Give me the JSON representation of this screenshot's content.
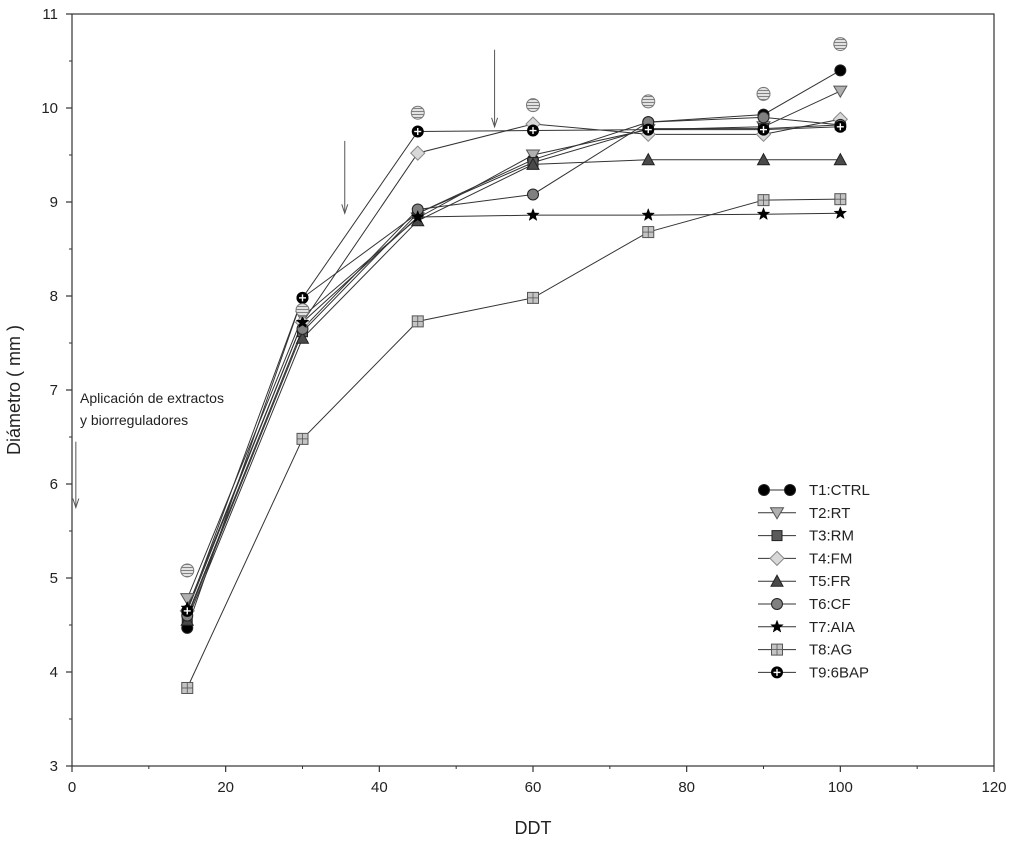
{
  "chart_data": {
    "type": "line",
    "title": "",
    "xlabel": "DDT",
    "ylabel": "Diámetro ( mm )",
    "xlim": [
      0,
      120
    ],
    "ylim": [
      3,
      11
    ],
    "xticks": [
      "0",
      "20",
      "40",
      "60",
      "80",
      "100",
      "120"
    ],
    "yticks": [
      "3",
      "4",
      "5",
      "6",
      "7",
      "8",
      "9",
      "10",
      "11"
    ],
    "grid": false,
    "legend_position": "lower-right",
    "x": [
      15,
      30,
      45,
      60,
      75,
      90,
      100
    ],
    "series": [
      {
        "name": "T1:CTRL",
        "marker": "circle",
        "fill": "#000000",
        "values": [
          4.47,
          7.98,
          8.88,
          9.45,
          9.85,
          9.93,
          10.4
        ]
      },
      {
        "name": "T2:RT",
        "marker": "triangle-down",
        "fill": "#b0b0b0",
        "values": [
          4.78,
          7.78,
          8.83,
          9.5,
          9.77,
          9.8,
          10.18
        ]
      },
      {
        "name": "T3:RM",
        "marker": "square",
        "fill": "#5a5a5a",
        "values": [
          4.58,
          7.62,
          8.88,
          9.42,
          9.78,
          9.78,
          9.82
        ]
      },
      {
        "name": "T4:FM",
        "marker": "diamond",
        "fill": "#d8d8d8",
        "values": [
          4.65,
          7.72,
          9.52,
          9.83,
          9.72,
          9.72,
          9.88
        ]
      },
      {
        "name": "T5:FR",
        "marker": "triangle-up",
        "fill": "#4a4a4a",
        "values": [
          4.55,
          7.55,
          8.8,
          9.4,
          9.45,
          9.45,
          9.45
        ]
      },
      {
        "name": "T6:CF",
        "marker": "circle",
        "fill": "#808080",
        "values": [
          4.6,
          7.65,
          8.92,
          9.08,
          9.85,
          9.9,
          9.82
        ]
      },
      {
        "name": "T7:AIA",
        "marker": "star",
        "fill": "#000000",
        "values": [
          4.68,
          7.72,
          8.84,
          8.86,
          8.86,
          8.87,
          8.88
        ]
      },
      {
        "name": "T8:AG",
        "marker": "grid-square",
        "fill": "#c4c4c4",
        "values": [
          3.83,
          6.48,
          7.73,
          7.98,
          8.68,
          9.02,
          9.03
        ]
      },
      {
        "name": "T9:6BAP",
        "marker": "plus-circle",
        "fill": "#000000",
        "values": [
          4.65,
          7.98,
          9.75,
          9.76,
          9.77,
          9.77,
          9.8
        ]
      },
      {
        "name": "",
        "marker": "striped-circle",
        "fill": "#cccccc",
        "line": false,
        "values": [
          5.08,
          7.85,
          9.95,
          10.03,
          10.07,
          10.15,
          10.68
        ]
      }
    ],
    "annotations": [
      {
        "text": "Aplicación de extractos",
        "line2": "y biorreguladores"
      }
    ],
    "arrows": [
      {
        "x": 0.5,
        "y_top": 6.45,
        "y_bottom": 5.75
      },
      {
        "x": 35.5,
        "y_top": 9.65,
        "y_bottom": 8.88
      },
      {
        "x": 55,
        "y_top": 10.62,
        "y_bottom": 9.8
      }
    ]
  }
}
